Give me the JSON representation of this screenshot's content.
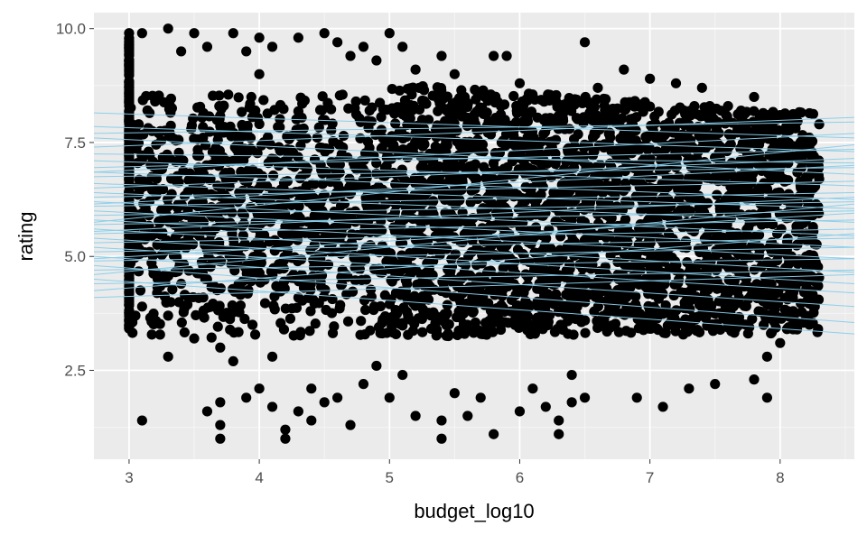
{
  "chart_data": {
    "type": "scatter",
    "title": "",
    "xlabel": "budget_log10",
    "ylabel": "rating",
    "xlim": [
      2.73,
      8.57
    ],
    "ylim": [
      0.55,
      10.35
    ],
    "x_ticks": [
      3,
      4,
      5,
      6,
      7,
      8
    ],
    "x_tick_labels": [
      "3",
      "4",
      "5",
      "6",
      "7",
      "8"
    ],
    "y_ticks": [
      2.5,
      5.0,
      7.5,
      10.0
    ],
    "y_tick_labels": [
      "2.5",
      "5.0",
      "7.5",
      "10.0"
    ],
    "grid": true,
    "legend": "none",
    "colors": {
      "panel_background": "#ebebeb",
      "grid_major": "#ffffff",
      "grid_minor": "#f5f5f5",
      "points": "#000000",
      "lines": "#87ceeb"
    },
    "series": [
      {
        "type": "scatter",
        "description_points": [
          [
            3.0,
            9.9
          ],
          [
            3.0,
            9.5
          ],
          [
            3.0,
            9.0
          ],
          [
            3.0,
            8.5
          ],
          [
            3.0,
            8.0
          ],
          [
            3.0,
            7.6
          ],
          [
            3.0,
            7.2
          ],
          [
            3.0,
            6.8
          ],
          [
            3.0,
            6.4
          ],
          [
            3.0,
            6.0
          ],
          [
            3.0,
            5.6
          ],
          [
            3.0,
            5.2
          ],
          [
            3.0,
            4.8
          ],
          [
            3.0,
            4.4
          ],
          [
            3.0,
            4.0
          ],
          [
            3.0,
            3.6
          ],
          [
            3.1,
            1.4
          ],
          [
            3.1,
            9.9
          ],
          [
            3.1,
            3.9
          ],
          [
            3.2,
            8.4
          ],
          [
            3.2,
            5.5
          ],
          [
            3.3,
            10.0
          ],
          [
            3.3,
            2.8
          ],
          [
            3.3,
            3.7
          ],
          [
            3.4,
            9.5
          ],
          [
            3.4,
            4.4
          ],
          [
            3.5,
            9.9
          ],
          [
            3.5,
            3.2
          ],
          [
            3.6,
            1.6
          ],
          [
            3.6,
            9.6
          ],
          [
            3.7,
            1.0
          ],
          [
            3.7,
            1.3
          ],
          [
            3.7,
            1.8
          ],
          [
            3.7,
            3.0
          ],
          [
            3.8,
            9.9
          ],
          [
            3.8,
            2.7
          ],
          [
            3.9,
            1.9
          ],
          [
            3.9,
            9.5
          ],
          [
            4.0,
            2.1
          ],
          [
            4.0,
            9.8
          ],
          [
            4.0,
            9.0
          ],
          [
            4.1,
            1.7
          ],
          [
            4.1,
            2.8
          ],
          [
            4.1,
            9.6
          ],
          [
            4.2,
            1.0
          ],
          [
            4.2,
            1.2
          ],
          [
            4.3,
            1.6
          ],
          [
            4.3,
            9.8
          ],
          [
            4.4,
            2.1
          ],
          [
            4.4,
            1.4
          ],
          [
            4.5,
            9.9
          ],
          [
            4.5,
            1.8
          ],
          [
            4.6,
            9.7
          ],
          [
            4.6,
            1.9
          ],
          [
            4.7,
            1.3
          ],
          [
            4.7,
            9.4
          ],
          [
            4.8,
            2.2
          ],
          [
            4.8,
            9.6
          ],
          [
            4.9,
            2.6
          ],
          [
            4.9,
            9.3
          ],
          [
            5.0,
            9.9
          ],
          [
            5.0,
            1.9
          ],
          [
            5.1,
            9.6
          ],
          [
            5.1,
            2.4
          ],
          [
            5.2,
            1.5
          ],
          [
            5.2,
            9.1
          ],
          [
            5.3,
            8.0
          ],
          [
            5.4,
            1.0
          ],
          [
            5.4,
            1.4
          ],
          [
            5.4,
            9.4
          ],
          [
            5.5,
            2.0
          ],
          [
            5.5,
            9.0
          ],
          [
            5.6,
            1.5
          ],
          [
            5.7,
            1.9
          ],
          [
            5.8,
            1.1
          ],
          [
            5.8,
            9.4
          ],
          [
            5.9,
            9.4
          ],
          [
            6.0,
            1.6
          ],
          [
            6.0,
            8.8
          ],
          [
            6.1,
            2.1
          ],
          [
            6.2,
            1.7
          ],
          [
            6.3,
            1.1
          ],
          [
            6.3,
            1.4
          ],
          [
            6.4,
            1.8
          ],
          [
            6.4,
            2.4
          ],
          [
            6.5,
            9.7
          ],
          [
            6.5,
            1.9
          ],
          [
            6.6,
            8.7
          ],
          [
            6.8,
            9.1
          ],
          [
            6.9,
            1.9
          ],
          [
            7.0,
            8.9
          ],
          [
            7.1,
            1.7
          ],
          [
            7.2,
            8.8
          ],
          [
            7.3,
            2.1
          ],
          [
            7.4,
            8.7
          ],
          [
            7.5,
            2.2
          ],
          [
            7.6,
            8.3
          ],
          [
            7.7,
            8.2
          ],
          [
            7.8,
            2.3
          ],
          [
            7.8,
            8.5
          ],
          [
            7.9,
            1.9
          ],
          [
            7.9,
            2.8
          ],
          [
            8.0,
            8.1
          ],
          [
            8.0,
            3.1
          ],
          [
            8.1,
            3.8
          ],
          [
            8.1,
            7.9
          ],
          [
            8.2,
            5.0
          ],
          [
            8.2,
            4.4
          ],
          [
            8.3,
            7.9
          ],
          [
            8.3,
            6.7
          ],
          [
            8.2,
            5.5
          ],
          [
            8.1,
            3.4
          ]
        ]
      },
      {
        "type": "lines",
        "description": "fitted regression lines (light blue), one per line, as [intercept_at_x_min, intercept_at_x_max]",
        "lines": [
          [
            8.15,
            7.6
          ],
          [
            7.7,
            7.95
          ],
          [
            7.4,
            8.05
          ],
          [
            7.25,
            7.05
          ],
          [
            7.1,
            6.55
          ],
          [
            6.95,
            7.35
          ],
          [
            6.85,
            6.25
          ],
          [
            6.75,
            6.95
          ],
          [
            6.6,
            6.05
          ],
          [
            6.5,
            7.15
          ],
          [
            6.4,
            5.75
          ],
          [
            6.3,
            6.65
          ],
          [
            6.2,
            5.45
          ],
          [
            6.1,
            6.4
          ],
          [
            6.0,
            5.2
          ],
          [
            5.9,
            6.2
          ],
          [
            5.8,
            4.95
          ],
          [
            5.7,
            6.0
          ],
          [
            5.6,
            4.65
          ],
          [
            5.5,
            5.8
          ],
          [
            5.4,
            4.4
          ],
          [
            5.3,
            5.6
          ],
          [
            5.2,
            4.2
          ],
          [
            5.1,
            5.4
          ],
          [
            5.0,
            3.9
          ],
          [
            4.9,
            5.2
          ],
          [
            4.8,
            3.55
          ],
          [
            4.7,
            4.95
          ],
          [
            4.5,
            3.3
          ],
          [
            4.4,
            4.7
          ],
          [
            4.25,
            5.5
          ],
          [
            4.1,
            4.6
          ],
          [
            7.6,
            6.8
          ],
          [
            6.85,
            7.7
          ],
          [
            6.15,
            7.0
          ],
          [
            5.55,
            6.3
          ],
          [
            4.95,
            5.95
          ],
          [
            5.75,
            7.45
          ],
          [
            4.6,
            6.15
          ],
          [
            7.85,
            7.3
          ]
        ]
      }
    ]
  }
}
